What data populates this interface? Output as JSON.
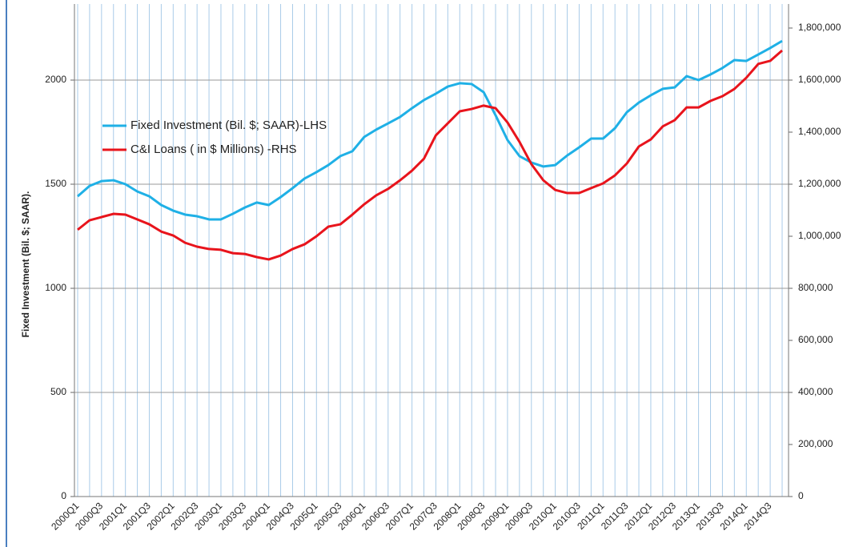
{
  "chart_data": {
    "type": "line",
    "y_label": "Fixed Investment (Bil. $; SAAR).",
    "categories": [
      "2000Q1",
      null,
      "2000Q3",
      null,
      "2001Q1",
      null,
      "2001Q3",
      null,
      "2002Q1",
      null,
      "2002Q3",
      null,
      "2003Q1",
      null,
      "2003Q3",
      null,
      "2004Q1",
      null,
      "2004Q3",
      null,
      "2005Q1",
      null,
      "2005Q3",
      null,
      "2006Q1",
      null,
      "2006Q3",
      null,
      "2007Q1",
      null,
      "2007Q3",
      null,
      "2008Q1",
      null,
      "2008Q3",
      null,
      "2009Q1",
      null,
      "2009Q3",
      null,
      "2010Q1",
      null,
      "2010Q3",
      null,
      "2011Q1",
      null,
      "2011Q3",
      null,
      "2012Q1",
      null,
      "2012Q3",
      null,
      "2013Q1",
      null,
      "2013Q3",
      null,
      "2014Q1",
      null,
      "2014Q3",
      null
    ],
    "series": [
      {
        "name": "Fixed Investment (Bil. $; SAAR)-LHS",
        "color": "#1fb0e6",
        "axis": "y",
        "values": [
          1442,
          1492,
          1515,
          1519,
          1500,
          1465,
          1442,
          1400,
          1373,
          1354,
          1346,
          1331,
          1331,
          1358,
          1388,
          1412,
          1400,
          1438,
          1481,
          1527,
          1558,
          1592,
          1635,
          1658,
          1727,
          1762,
          1792,
          1823,
          1865,
          1904,
          1935,
          1969,
          1985,
          1981,
          1942,
          1831,
          1712,
          1635,
          1604,
          1585,
          1592,
          1638,
          1677,
          1719,
          1719,
          1769,
          1846,
          1892,
          1927,
          1958,
          1965,
          2019,
          2000,
          2027,
          2058,
          2096,
          2092,
          2123,
          2154,
          2188
        ]
      },
      {
        "name": "C&I Loans ( in $ Millions) -RHS",
        "color": "#e8141c",
        "axis": "y2",
        "values": [
          1025000,
          1061500,
          1073800,
          1086000,
          1083000,
          1064600,
          1046000,
          1018000,
          1003000,
          975000,
          960000,
          951000,
          948000,
          935000,
          932000,
          920000,
          911000,
          926000,
          951000,
          969000,
          1000000,
          1037000,
          1046000,
          1083000,
          1123000,
          1157000,
          1182000,
          1215000,
          1252000,
          1298000,
          1388000,
          1434000,
          1480000,
          1489000,
          1502000,
          1492000,
          1437000,
          1363000,
          1277000,
          1215000,
          1178000,
          1166000,
          1166000,
          1185000,
          1203000,
          1234000,
          1280000,
          1345000,
          1372000,
          1422000,
          1446000,
          1495000,
          1495000,
          1520000,
          1538000,
          1566000,
          1609000,
          1662000,
          1674000,
          1714000
        ]
      }
    ],
    "ylim": [
      0,
      2250
    ],
    "yticks": [
      0,
      500,
      1000,
      1500,
      2000
    ],
    "y2lim": [
      0,
      1800000
    ],
    "y2ticks": [
      0,
      {
        "value": 200000,
        "label": "200,000"
      },
      {
        "value": 400000,
        "label": "400,000"
      },
      {
        "value": 600000,
        "label": "600,000"
      },
      {
        "value": 800000,
        "label": "800,000"
      },
      {
        "value": 1000000,
        "label": "1,000,000"
      },
      {
        "value": 1200000,
        "label": "1,200,000"
      },
      {
        "value": 1400000,
        "label": "1,400,000"
      },
      {
        "value": 1600000,
        "label": "1,600,000"
      },
      {
        "value": 1800000,
        "label": "1,800,000"
      }
    ],
    "grid": true,
    "legend": "upper left"
  }
}
